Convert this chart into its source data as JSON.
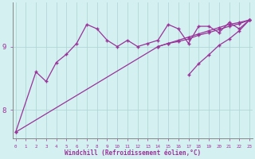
{
  "xlabel": "Windchill (Refroidissement éolien,°C)",
  "background_color": "#d4f0f0",
  "line_color": "#993399",
  "grid_color": "#b0d8d8",
  "x": [
    0,
    1,
    2,
    3,
    4,
    5,
    6,
    7,
    8,
    9,
    10,
    11,
    12,
    13,
    14,
    15,
    16,
    17,
    18,
    19,
    20,
    21,
    22,
    23
  ],
  "line1": [
    7.65,
    null,
    8.6,
    8.45,
    8.75,
    8.88,
    9.05,
    9.35,
    9.28,
    9.1,
    9.0,
    9.1,
    9.0,
    9.05,
    9.1,
    9.35,
    9.28,
    9.05,
    9.32,
    9.32,
    9.22,
    9.38,
    9.28,
    9.42
  ],
  "line2": [
    7.65,
    null,
    null,
    null,
    null,
    null,
    null,
    null,
    null,
    null,
    null,
    null,
    null,
    null,
    9.0,
    9.05,
    9.08,
    9.12,
    9.18,
    9.22,
    9.27,
    9.32,
    9.36,
    9.42
  ],
  "line3": [
    null,
    null,
    null,
    null,
    null,
    null,
    null,
    null,
    null,
    null,
    null,
    null,
    null,
    null,
    9.0,
    9.05,
    9.1,
    9.15,
    9.2,
    9.25,
    9.3,
    9.35,
    9.38,
    9.42
  ],
  "line4": [
    null,
    null,
    null,
    null,
    null,
    null,
    null,
    null,
    null,
    null,
    null,
    null,
    null,
    null,
    null,
    null,
    null,
    8.55,
    8.73,
    8.87,
    9.02,
    9.12,
    9.25,
    9.42
  ],
  "ylim": [
    7.55,
    9.7
  ],
  "yticks": [
    8,
    9
  ],
  "xlim": [
    -0.3,
    23.3
  ]
}
